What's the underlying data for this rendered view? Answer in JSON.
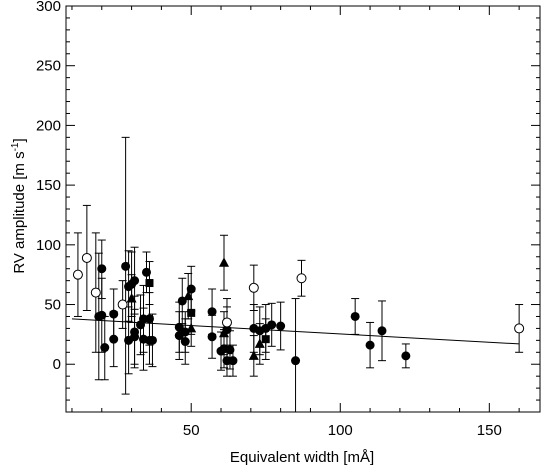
{
  "chart_data": {
    "type": "scatter",
    "title": "",
    "xlabel": "Equivalent width [mÅ]",
    "ylabel_main": "RV amplitude [m s",
    "ylabel_sup": "-1",
    "ylabel_end": "]",
    "xlim": [
      8,
      167
    ],
    "ylim": [
      -40,
      300
    ],
    "x_ticks": [
      50,
      100,
      150
    ],
    "x_tick_labels": [
      "50",
      "100",
      "150"
    ],
    "y_ticks": [
      0,
      50,
      100,
      150,
      200,
      250,
      300
    ],
    "y_tick_labels": [
      "0",
      "50",
      "100",
      "150",
      "200",
      "250",
      "300"
    ],
    "grid": false,
    "fit_line": {
      "x": [
        10,
        160
      ],
      "y": [
        38,
        17
      ]
    },
    "series": [
      {
        "marker": "filled-circle",
        "points": [
          {
            "x": 19,
            "y": 40,
            "lo": -13,
            "hi": 93
          },
          {
            "x": 20,
            "y": 80,
            "lo": 55,
            "hi": 104
          },
          {
            "x": 20,
            "y": 41,
            "lo": 10,
            "hi": 72
          },
          {
            "x": 21,
            "y": 14,
            "lo": -13,
            "hi": 40
          },
          {
            "x": 24,
            "y": 42,
            "lo": 20,
            "hi": 63
          },
          {
            "x": 24,
            "y": 21,
            "lo": -2,
            "hi": 44
          },
          {
            "x": 28,
            "y": 82,
            "lo": -25,
            "hi": 190
          },
          {
            "x": 29,
            "y": 65,
            "lo": 36,
            "hi": 95
          },
          {
            "x": 29,
            "y": 20,
            "lo": -8,
            "hi": 48
          },
          {
            "x": 30,
            "y": 67,
            "lo": 40,
            "hi": 94
          },
          {
            "x": 31,
            "y": 70,
            "lo": 42,
            "hi": 98
          },
          {
            "x": 31,
            "y": 23,
            "lo": 0,
            "hi": 46
          },
          {
            "x": 31,
            "y": 27,
            "lo": -3,
            "hi": 57
          },
          {
            "x": 33,
            "y": 33,
            "lo": 8,
            "hi": 58
          },
          {
            "x": 34,
            "y": 21,
            "lo": -5,
            "hi": 47
          },
          {
            "x": 34,
            "y": 38,
            "lo": 10,
            "hi": 66
          },
          {
            "x": 35,
            "y": 77,
            "lo": 60,
            "hi": 94
          },
          {
            "x": 36,
            "y": 38,
            "lo": 16,
            "hi": 60
          },
          {
            "x": 36,
            "y": 20,
            "lo": 0,
            "hi": 40
          },
          {
            "x": 37,
            "y": 20,
            "lo": -2,
            "hi": 42
          },
          {
            "x": 46,
            "y": 31,
            "lo": 10,
            "hi": 52
          },
          {
            "x": 46,
            "y": 24,
            "lo": 4,
            "hi": 44
          },
          {
            "x": 47,
            "y": 53,
            "lo": 34,
            "hi": 72
          },
          {
            "x": 48,
            "y": 19,
            "lo": 0,
            "hi": 38
          },
          {
            "x": 48,
            "y": 27,
            "lo": 10,
            "hi": 44
          },
          {
            "x": 50,
            "y": 63,
            "lo": 44,
            "hi": 82
          },
          {
            "x": 57,
            "y": 44,
            "lo": 25,
            "hi": 63
          },
          {
            "x": 57,
            "y": 23,
            "lo": 5,
            "hi": 41
          },
          {
            "x": 60,
            "y": 11,
            "lo": -5,
            "hi": 27
          },
          {
            "x": 61,
            "y": 13,
            "lo": -3,
            "hi": 29
          },
          {
            "x": 62,
            "y": 3,
            "lo": -10,
            "hi": 16
          },
          {
            "x": 62,
            "y": 29,
            "lo": 10,
            "hi": 48
          },
          {
            "x": 63,
            "y": 12,
            "lo": -4,
            "hi": 28
          },
          {
            "x": 64,
            "y": 3,
            "lo": -10,
            "hi": 16
          },
          {
            "x": 71,
            "y": 30,
            "lo": 10,
            "hi": 50
          },
          {
            "x": 73,
            "y": 28,
            "lo": 8,
            "hi": 48
          },
          {
            "x": 75,
            "y": 30,
            "lo": 10,
            "hi": 50
          },
          {
            "x": 77,
            "y": 33,
            "lo": 15,
            "hi": 51
          },
          {
            "x": 80,
            "y": 32,
            "lo": 12,
            "hi": 52
          },
          {
            "x": 85,
            "y": 3,
            "lo": -45,
            "hi": 55
          },
          {
            "x": 105,
            "y": 40,
            "lo": 25,
            "hi": 55
          },
          {
            "x": 110,
            "y": 16,
            "lo": -3,
            "hi": 35
          },
          {
            "x": 114,
            "y": 28,
            "lo": 3,
            "hi": 53
          },
          {
            "x": 122,
            "y": 7,
            "lo": -3,
            "hi": 17
          }
        ]
      },
      {
        "marker": "open-circle",
        "points": [
          {
            "x": 12,
            "y": 75,
            "lo": 40,
            "hi": 110
          },
          {
            "x": 15,
            "y": 89,
            "lo": 45,
            "hi": 133
          },
          {
            "x": 18,
            "y": 60,
            "lo": 10,
            "hi": 110
          },
          {
            "x": 27,
            "y": 50,
            "lo": 30,
            "hi": 70
          },
          {
            "x": 62,
            "y": 35,
            "lo": 15,
            "hi": 55
          },
          {
            "x": 71,
            "y": 64,
            "lo": 45,
            "hi": 83
          },
          {
            "x": 87,
            "y": 72,
            "lo": 57,
            "hi": 87
          },
          {
            "x": 160,
            "y": 30,
            "lo": 10,
            "hi": 50
          }
        ]
      },
      {
        "marker": "filled-triangle",
        "points": [
          {
            "x": 30,
            "y": 55,
            "lo": 35,
            "hi": 75
          },
          {
            "x": 49,
            "y": 57,
            "lo": 38,
            "hi": 76
          },
          {
            "x": 50,
            "y": 30,
            "lo": 15,
            "hi": 45
          },
          {
            "x": 61,
            "y": 85,
            "lo": 62,
            "hi": 108
          },
          {
            "x": 61,
            "y": 26,
            "lo": 8,
            "hi": 44
          },
          {
            "x": 71,
            "y": 7,
            "lo": -10,
            "hi": 24
          },
          {
            "x": 73,
            "y": 17,
            "lo": 0,
            "hi": 34
          }
        ]
      },
      {
        "marker": "filled-square",
        "points": [
          {
            "x": 36,
            "y": 68,
            "lo": 50,
            "hi": 86
          },
          {
            "x": 50,
            "y": 43,
            "lo": 25,
            "hi": 61
          },
          {
            "x": 75,
            "y": 21,
            "lo": 4,
            "hi": 38
          }
        ]
      }
    ]
  }
}
